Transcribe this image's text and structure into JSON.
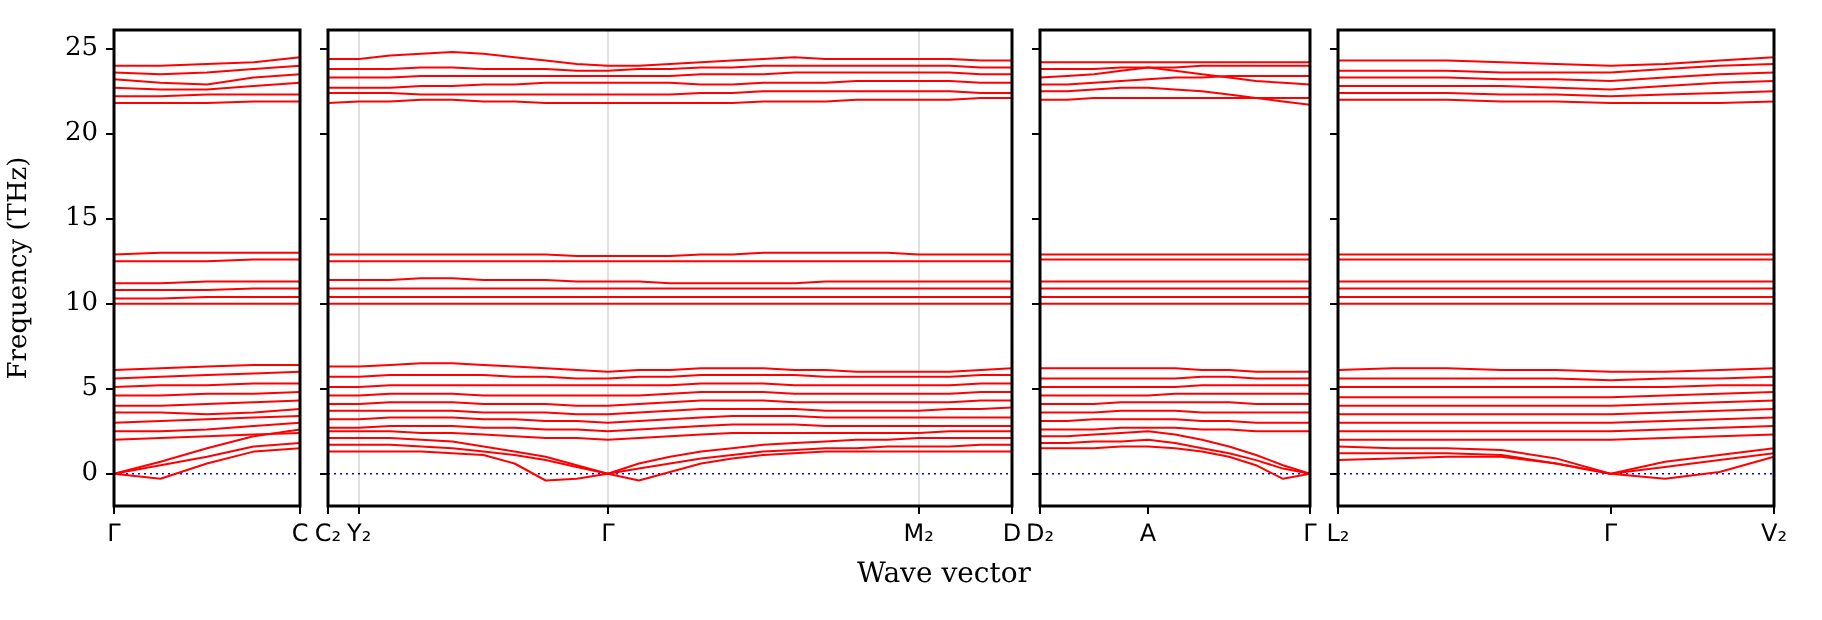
{
  "chart_data": [
    {
      "type": "line",
      "ylabel": "Frequency (THz)",
      "color": "#ff0000",
      "ylim": [
        -1.9,
        26.1
      ],
      "yticks": [
        0,
        5,
        10,
        15,
        20,
        25
      ],
      "ref_lines": [
        {
          "axis": "y",
          "value": 0,
          "color": "#0000ff",
          "line_style": "dotted"
        }
      ],
      "categories": [
        "Γ",
        null,
        null,
        null,
        "C"
      ],
      "series": [
        {
          "values": [
            0,
            -0.3,
            0.6,
            1.3,
            1.5
          ]
        },
        {
          "values": [
            0,
            0.5,
            1.0,
            1.6,
            1.8
          ]
        },
        {
          "values": [
            0,
            0.7,
            1.5,
            2.2,
            2.6
          ]
        },
        {
          "values": [
            2.0,
            2.1,
            2.2,
            2.3,
            2.4
          ]
        },
        {
          "values": [
            2.5,
            2.5,
            2.6,
            2.8,
            3.0
          ]
        },
        {
          "values": [
            3.0,
            3.1,
            3.2,
            3.3,
            3.4
          ]
        },
        {
          "values": [
            3.6,
            3.6,
            3.5,
            3.6,
            3.8
          ]
        },
        {
          "values": [
            4.0,
            4.0,
            4.1,
            4.2,
            4.3
          ]
        },
        {
          "values": [
            4.6,
            4.6,
            4.7,
            4.7,
            4.8
          ]
        },
        {
          "values": [
            5.1,
            5.2,
            5.2,
            5.3,
            5.3
          ]
        },
        {
          "values": [
            5.6,
            5.7,
            5.8,
            5.9,
            6.0
          ]
        },
        {
          "values": [
            6.1,
            6.2,
            6.3,
            6.4,
            6.4
          ]
        },
        {
          "values": [
            10.0,
            10.0,
            10.0,
            10.0,
            10.0
          ]
        },
        {
          "values": [
            10.3,
            10.3,
            10.4,
            10.4,
            10.4
          ]
        },
        {
          "values": [
            10.8,
            10.8,
            10.8,
            10.9,
            10.9
          ]
        },
        {
          "values": [
            11.2,
            11.2,
            11.3,
            11.3,
            11.3
          ]
        },
        {
          "values": [
            12.5,
            12.5,
            12.5,
            12.6,
            12.6
          ]
        },
        {
          "values": [
            12.9,
            13.0,
            13.0,
            13.0,
            13.0
          ]
        },
        {
          "values": [
            21.8,
            21.8,
            21.8,
            21.9,
            21.9
          ]
        },
        {
          "values": [
            22.2,
            22.2,
            22.3,
            22.3,
            22.3
          ]
        },
        {
          "values": [
            22.7,
            22.6,
            22.6,
            22.8,
            23.0
          ]
        },
        {
          "values": [
            23.2,
            23.0,
            22.9,
            23.3,
            23.5
          ]
        },
        {
          "values": [
            23.6,
            23.5,
            23.6,
            23.8,
            24.0
          ]
        },
        {
          "values": [
            24.0,
            24.0,
            24.1,
            24.2,
            24.5
          ]
        }
      ]
    },
    {
      "type": "line",
      "xlabel": "Wave vector",
      "color": "#ff0000",
      "ylim": [
        -1.9,
        26.1
      ],
      "yticks": [
        0,
        5,
        10,
        15,
        20,
        25
      ],
      "tick_labels": "x",
      "grid": "x",
      "ref_lines": [
        {
          "axis": "y",
          "value": 0,
          "color": "#0000ff",
          "line_style": "dotted"
        }
      ],
      "categories": [
        "C₂",
        "Y₂",
        null,
        null,
        null,
        null,
        null,
        null,
        null,
        "Γ",
        null,
        null,
        null,
        null,
        null,
        null,
        null,
        null,
        null,
        "M₂",
        null,
        null,
        "D"
      ],
      "series": [
        {
          "values": [
            1.7,
            1.7,
            1.7,
            1.6,
            1.5,
            1.3,
            1.1,
            0.8,
            0.4,
            0,
            0.3,
            0.6,
            0.9,
            1.1,
            1.3,
            1.4,
            1.5,
            1.5,
            1.6,
            1.6,
            1.6,
            1.7,
            1.7
          ]
        },
        {
          "values": [
            1.3,
            1.3,
            1.3,
            1.3,
            1.2,
            1.1,
            0.6,
            -0.4,
            -0.3,
            0,
            -0.4,
            0.1,
            0.6,
            0.9,
            1.1,
            1.2,
            1.3,
            1.3,
            1.3,
            1.3,
            1.3,
            1.3,
            1.3
          ]
        },
        {
          "values": [
            2.1,
            2.1,
            2.1,
            2.0,
            1.9,
            1.6,
            1.3,
            1.0,
            0.5,
            0,
            0.6,
            1.0,
            1.3,
            1.5,
            1.7,
            1.8,
            1.9,
            2.0,
            2.0,
            2.1,
            2.1,
            2.1,
            2.1
          ]
        },
        {
          "values": [
            2.5,
            2.5,
            2.5,
            2.4,
            2.4,
            2.3,
            2.2,
            2.1,
            2.1,
            2.0,
            2.1,
            2.2,
            2.3,
            2.4,
            2.4,
            2.4,
            2.4,
            2.4,
            2.4,
            2.4,
            2.5,
            2.5,
            2.5
          ]
        },
        {
          "values": [
            2.7,
            2.7,
            2.8,
            2.8,
            2.8,
            2.7,
            2.7,
            2.6,
            2.6,
            2.5,
            2.6,
            2.7,
            2.8,
            2.9,
            2.9,
            2.9,
            2.8,
            2.8,
            2.8,
            2.8,
            2.8,
            2.8,
            2.8
          ]
        },
        {
          "values": [
            3.2,
            3.2,
            3.3,
            3.3,
            3.3,
            3.2,
            3.2,
            3.1,
            3.1,
            3.0,
            3.1,
            3.2,
            3.3,
            3.4,
            3.4,
            3.4,
            3.3,
            3.3,
            3.3,
            3.3,
            3.3,
            3.3,
            3.3
          ]
        },
        {
          "values": [
            3.7,
            3.7,
            3.7,
            3.7,
            3.7,
            3.6,
            3.6,
            3.6,
            3.5,
            3.5,
            3.6,
            3.7,
            3.8,
            3.8,
            3.8,
            3.8,
            3.7,
            3.7,
            3.7,
            3.7,
            3.8,
            3.8,
            3.9
          ]
        },
        {
          "values": [
            4.1,
            4.1,
            4.2,
            4.2,
            4.2,
            4.1,
            4.1,
            4.1,
            4.0,
            4.0,
            4.1,
            4.2,
            4.3,
            4.3,
            4.3,
            4.2,
            4.2,
            4.2,
            4.2,
            4.2,
            4.2,
            4.3,
            4.3
          ]
        },
        {
          "values": [
            4.6,
            4.6,
            4.7,
            4.7,
            4.7,
            4.6,
            4.6,
            4.6,
            4.6,
            4.6,
            4.6,
            4.7,
            4.8,
            4.8,
            4.8,
            4.7,
            4.7,
            4.7,
            4.7,
            4.7,
            4.7,
            4.8,
            4.8
          ]
        },
        {
          "values": [
            5.1,
            5.1,
            5.2,
            5.2,
            5.2,
            5.2,
            5.2,
            5.2,
            5.2,
            5.2,
            5.2,
            5.2,
            5.3,
            5.3,
            5.3,
            5.2,
            5.2,
            5.2,
            5.2,
            5.2,
            5.2,
            5.3,
            5.3
          ]
        },
        {
          "values": [
            5.7,
            5.7,
            5.8,
            5.8,
            5.8,
            5.8,
            5.7,
            5.7,
            5.6,
            5.6,
            5.7,
            5.7,
            5.8,
            5.8,
            5.8,
            5.8,
            5.7,
            5.7,
            5.7,
            5.7,
            5.7,
            5.8,
            5.8
          ]
        },
        {
          "values": [
            6.3,
            6.3,
            6.4,
            6.5,
            6.5,
            6.4,
            6.3,
            6.2,
            6.1,
            6.0,
            6.1,
            6.1,
            6.2,
            6.2,
            6.2,
            6.1,
            6.1,
            6.0,
            6.0,
            6.0,
            6.0,
            6.1,
            6.2
          ]
        },
        {
          "values": [
            10.0,
            10.0,
            10.0,
            10.0,
            10.0,
            10.0,
            10.0,
            10.0,
            10.0,
            10.0,
            10.0,
            10.0,
            10.0,
            10.0,
            10.0,
            10.0,
            10.0,
            10.0,
            10.0,
            10.0,
            10.0,
            10.0,
            10.0
          ]
        },
        {
          "values": [
            10.4,
            10.4,
            10.4,
            10.4,
            10.4,
            10.4,
            10.4,
            10.4,
            10.4,
            10.4,
            10.4,
            10.4,
            10.4,
            10.4,
            10.4,
            10.4,
            10.4,
            10.4,
            10.4,
            10.4,
            10.4,
            10.4,
            10.4
          ]
        },
        {
          "values": [
            10.9,
            10.9,
            10.9,
            10.9,
            10.9,
            10.9,
            10.9,
            10.9,
            10.9,
            10.9,
            10.9,
            10.9,
            10.9,
            10.9,
            10.9,
            10.9,
            10.9,
            10.9,
            10.9,
            10.9,
            10.9,
            10.9,
            10.9
          ]
        },
        {
          "values": [
            11.4,
            11.4,
            11.4,
            11.5,
            11.5,
            11.4,
            11.4,
            11.4,
            11.3,
            11.3,
            11.3,
            11.2,
            11.2,
            11.2,
            11.2,
            11.2,
            11.3,
            11.3,
            11.3,
            11.3,
            11.3,
            11.3,
            11.3
          ]
        },
        {
          "values": [
            12.5,
            12.5,
            12.5,
            12.5,
            12.5,
            12.5,
            12.5,
            12.5,
            12.5,
            12.5,
            12.5,
            12.5,
            12.5,
            12.5,
            12.5,
            12.5,
            12.5,
            12.5,
            12.5,
            12.5,
            12.5,
            12.5,
            12.5
          ]
        },
        {
          "values": [
            12.9,
            12.9,
            12.9,
            12.9,
            12.9,
            12.9,
            12.9,
            12.9,
            12.8,
            12.8,
            12.8,
            12.8,
            12.9,
            12.9,
            13.0,
            13.0,
            13.0,
            13.0,
            13.0,
            12.9,
            12.9,
            12.9,
            12.9
          ]
        },
        {
          "values": [
            21.8,
            21.9,
            21.9,
            22.0,
            22.0,
            21.9,
            21.9,
            21.8,
            21.8,
            21.8,
            21.8,
            21.8,
            21.8,
            21.8,
            21.9,
            21.9,
            21.9,
            22.0,
            22.0,
            22.0,
            22.0,
            22.1,
            22.1
          ]
        },
        {
          "values": [
            22.4,
            22.4,
            22.4,
            22.3,
            22.3,
            22.3,
            22.3,
            22.3,
            22.3,
            22.3,
            22.3,
            22.3,
            22.4,
            22.4,
            22.5,
            22.5,
            22.5,
            22.5,
            22.5,
            22.5,
            22.5,
            22.4,
            22.4
          ]
        },
        {
          "values": [
            22.7,
            22.7,
            22.7,
            22.8,
            22.8,
            22.9,
            22.9,
            23.0,
            23.0,
            23.0,
            23.0,
            23.0,
            22.9,
            22.9,
            23.0,
            23.0,
            23.0,
            23.1,
            23.1,
            23.1,
            23.1,
            23.0,
            23.0
          ]
        },
        {
          "values": [
            23.3,
            23.3,
            23.3,
            23.4,
            23.4,
            23.4,
            23.4,
            23.4,
            23.4,
            23.4,
            23.4,
            23.4,
            23.5,
            23.5,
            23.5,
            23.6,
            23.6,
            23.6,
            23.6,
            23.6,
            23.6,
            23.5,
            23.5
          ]
        },
        {
          "values": [
            23.8,
            23.8,
            23.8,
            23.9,
            23.9,
            23.8,
            23.8,
            23.8,
            23.7,
            23.7,
            23.8,
            23.8,
            23.9,
            23.9,
            24.0,
            24.0,
            24.0,
            24.0,
            24.0,
            24.0,
            24.0,
            23.9,
            23.9
          ]
        },
        {
          "values": [
            24.4,
            24.4,
            24.6,
            24.7,
            24.8,
            24.7,
            24.5,
            24.3,
            24.1,
            24.0,
            24.0,
            24.1,
            24.2,
            24.3,
            24.4,
            24.5,
            24.4,
            24.4,
            24.4,
            24.4,
            24.4,
            24.3,
            24.3
          ]
        }
      ]
    },
    {
      "type": "line",
      "color": "#ff0000",
      "ylim": [
        -1.9,
        26.1
      ],
      "yticks": [
        0,
        5,
        10,
        15,
        20,
        25
      ],
      "tick_labels": "x",
      "ref_lines": [
        {
          "axis": "y",
          "value": 0,
          "color": "#0000ff",
          "line_style": "dotted"
        }
      ],
      "categories": [
        "D₂",
        null,
        null,
        null,
        "A",
        null,
        null,
        null,
        null,
        null,
        "Γ"
      ],
      "series": [
        {
          "values": [
            1.8,
            1.8,
            1.9,
            1.9,
            2.0,
            1.8,
            1.5,
            1.2,
            0.8,
            0.3,
            0
          ]
        },
        {
          "values": [
            1.5,
            1.5,
            1.5,
            1.6,
            1.6,
            1.5,
            1.3,
            1.0,
            0.5,
            -0.3,
            0
          ]
        },
        {
          "values": [
            2.2,
            2.2,
            2.3,
            2.4,
            2.5,
            2.3,
            2.0,
            1.6,
            1.1,
            0.5,
            0
          ]
        },
        {
          "values": [
            2.6,
            2.6,
            2.6,
            2.7,
            2.7,
            2.7,
            2.6,
            2.6,
            2.5,
            2.5,
            2.5
          ]
        },
        {
          "values": [
            3.1,
            3.1,
            3.2,
            3.2,
            3.2,
            3.2,
            3.1,
            3.1,
            3.0,
            3.0,
            3.0
          ]
        },
        {
          "values": [
            3.6,
            3.6,
            3.6,
            3.7,
            3.7,
            3.7,
            3.6,
            3.6,
            3.6,
            3.6,
            3.6
          ]
        },
        {
          "values": [
            4.1,
            4.1,
            4.1,
            4.2,
            4.2,
            4.2,
            4.2,
            4.2,
            4.1,
            4.1,
            4.1
          ]
        },
        {
          "values": [
            4.6,
            4.6,
            4.6,
            4.6,
            4.6,
            4.7,
            4.7,
            4.7,
            4.7,
            4.7,
            4.7
          ]
        },
        {
          "values": [
            5.1,
            5.1,
            5.1,
            5.1,
            5.1,
            5.1,
            5.2,
            5.2,
            5.2,
            5.2,
            5.2
          ]
        },
        {
          "values": [
            5.6,
            5.6,
            5.6,
            5.6,
            5.6,
            5.6,
            5.7,
            5.7,
            5.6,
            5.6,
            5.6
          ]
        },
        {
          "values": [
            6.2,
            6.2,
            6.2,
            6.2,
            6.2,
            6.2,
            6.1,
            6.1,
            6.0,
            6.0,
            6.0
          ]
        },
        {
          "values": [
            10.0,
            10.0,
            10.0,
            10.0,
            10.0,
            10.0,
            10.0,
            10.0,
            10.0,
            10.0,
            10.0
          ]
        },
        {
          "values": [
            10.4,
            10.4,
            10.4,
            10.4,
            10.4,
            10.4,
            10.4,
            10.4,
            10.4,
            10.4,
            10.4
          ]
        },
        {
          "values": [
            10.9,
            10.9,
            10.9,
            10.9,
            10.9,
            10.9,
            10.9,
            10.9,
            10.9,
            10.9,
            10.9
          ]
        },
        {
          "values": [
            11.3,
            11.3,
            11.3,
            11.3,
            11.3,
            11.3,
            11.3,
            11.3,
            11.3,
            11.3,
            11.3
          ]
        },
        {
          "values": [
            12.6,
            12.6,
            12.6,
            12.6,
            12.6,
            12.6,
            12.6,
            12.6,
            12.6,
            12.6,
            12.6
          ]
        },
        {
          "values": [
            12.9,
            12.9,
            12.9,
            12.9,
            12.9,
            12.9,
            12.9,
            12.9,
            12.9,
            12.9,
            12.9
          ]
        },
        {
          "values": [
            22.0,
            22.0,
            22.1,
            22.1,
            22.1,
            22.1,
            22.1,
            22.1,
            22.1,
            22.1,
            22.1
          ]
        },
        {
          "values": [
            22.5,
            22.5,
            22.6,
            22.7,
            22.7,
            22.6,
            22.5,
            22.3,
            22.1,
            21.9,
            21.7
          ]
        },
        {
          "values": [
            22.9,
            22.9,
            23.0,
            23.1,
            23.2,
            23.3,
            23.3,
            23.4,
            23.4,
            23.4,
            23.4
          ]
        },
        {
          "values": [
            23.3,
            23.4,
            23.5,
            23.7,
            23.9,
            23.7,
            23.5,
            23.3,
            23.1,
            23.0,
            22.9
          ]
        },
        {
          "values": [
            23.8,
            23.8,
            23.8,
            23.9,
            23.9,
            23.9,
            24.0,
            24.0,
            24.0,
            24.0,
            24.0
          ]
        },
        {
          "values": [
            24.2,
            24.2,
            24.2,
            24.2,
            24.2,
            24.2,
            24.2,
            24.2,
            24.2,
            24.2,
            24.2
          ]
        }
      ]
    },
    {
      "type": "line",
      "color": "#ff0000",
      "ylim": [
        -1.9,
        26.1
      ],
      "yticks": [
        0,
        5,
        10,
        15,
        20,
        25
      ],
      "tick_labels": "x",
      "ref_lines": [
        {
          "axis": "y",
          "value": 0,
          "color": "#0000ff",
          "line_style": "dotted"
        }
      ],
      "categories": [
        "L₂",
        null,
        null,
        null,
        null,
        "Γ",
        null,
        null,
        "V₂"
      ],
      "series": [
        {
          "values": [
            0.8,
            0.9,
            1.0,
            1.0,
            0.6,
            0,
            0.4,
            0.8,
            1.2
          ]
        },
        {
          "values": [
            1.2,
            1.2,
            1.2,
            1.1,
            0.6,
            0,
            -0.3,
            0.1,
            1.0
          ]
        },
        {
          "values": [
            1.6,
            1.5,
            1.5,
            1.4,
            0.9,
            0,
            0.7,
            1.1,
            1.5
          ]
        },
        {
          "values": [
            2.0,
            2.0,
            2.0,
            2.0,
            2.0,
            2.0,
            2.1,
            2.2,
            2.3
          ]
        },
        {
          "values": [
            2.5,
            2.5,
            2.5,
            2.5,
            2.5,
            2.5,
            2.6,
            2.7,
            2.8
          ]
        },
        {
          "values": [
            3.0,
            3.0,
            3.0,
            3.0,
            3.0,
            3.0,
            3.1,
            3.2,
            3.3
          ]
        },
        {
          "values": [
            3.5,
            3.5,
            3.5,
            3.5,
            3.5,
            3.5,
            3.6,
            3.7,
            3.8
          ]
        },
        {
          "values": [
            4.0,
            4.0,
            4.0,
            4.0,
            4.0,
            4.0,
            4.1,
            4.2,
            4.3
          ]
        },
        {
          "values": [
            4.5,
            4.5,
            4.5,
            4.5,
            4.5,
            4.5,
            4.6,
            4.7,
            4.8
          ]
        },
        {
          "values": [
            5.1,
            5.1,
            5.1,
            5.1,
            5.1,
            5.1,
            5.1,
            5.2,
            5.2
          ]
        },
        {
          "values": [
            5.6,
            5.6,
            5.6,
            5.6,
            5.6,
            5.5,
            5.6,
            5.6,
            5.7
          ]
        },
        {
          "values": [
            6.1,
            6.2,
            6.2,
            6.1,
            6.1,
            6.0,
            6.0,
            6.1,
            6.2
          ]
        },
        {
          "values": [
            10.0,
            10.0,
            10.0,
            10.0,
            10.0,
            10.0,
            10.0,
            10.0,
            10.0
          ]
        },
        {
          "values": [
            10.4,
            10.4,
            10.4,
            10.4,
            10.4,
            10.4,
            10.4,
            10.4,
            10.4
          ]
        },
        {
          "values": [
            10.9,
            10.9,
            10.9,
            10.9,
            10.9,
            10.9,
            10.9,
            10.9,
            10.9
          ]
        },
        {
          "values": [
            11.3,
            11.3,
            11.3,
            11.3,
            11.3,
            11.3,
            11.3,
            11.3,
            11.3
          ]
        },
        {
          "values": [
            12.6,
            12.6,
            12.6,
            12.6,
            12.6,
            12.6,
            12.6,
            12.6,
            12.6
          ]
        },
        {
          "values": [
            12.9,
            12.9,
            12.9,
            12.9,
            12.9,
            12.9,
            12.9,
            12.9,
            12.9
          ]
        },
        {
          "values": [
            22.0,
            22.0,
            22.0,
            21.9,
            21.9,
            21.8,
            21.8,
            21.8,
            21.9
          ]
        },
        {
          "values": [
            22.4,
            22.4,
            22.4,
            22.3,
            22.3,
            22.2,
            22.3,
            22.4,
            22.5
          ]
        },
        {
          "values": [
            22.8,
            22.8,
            22.8,
            22.8,
            22.7,
            22.6,
            22.8,
            23.0,
            23.1
          ]
        },
        {
          "values": [
            23.3,
            23.3,
            23.3,
            23.2,
            23.2,
            23.1,
            23.3,
            23.5,
            23.6
          ]
        },
        {
          "values": [
            23.7,
            23.7,
            23.7,
            23.6,
            23.6,
            23.6,
            23.8,
            24.0,
            24.1
          ]
        },
        {
          "values": [
            24.3,
            24.3,
            24.3,
            24.2,
            24.1,
            24.0,
            24.1,
            24.3,
            24.5
          ]
        }
      ]
    }
  ]
}
